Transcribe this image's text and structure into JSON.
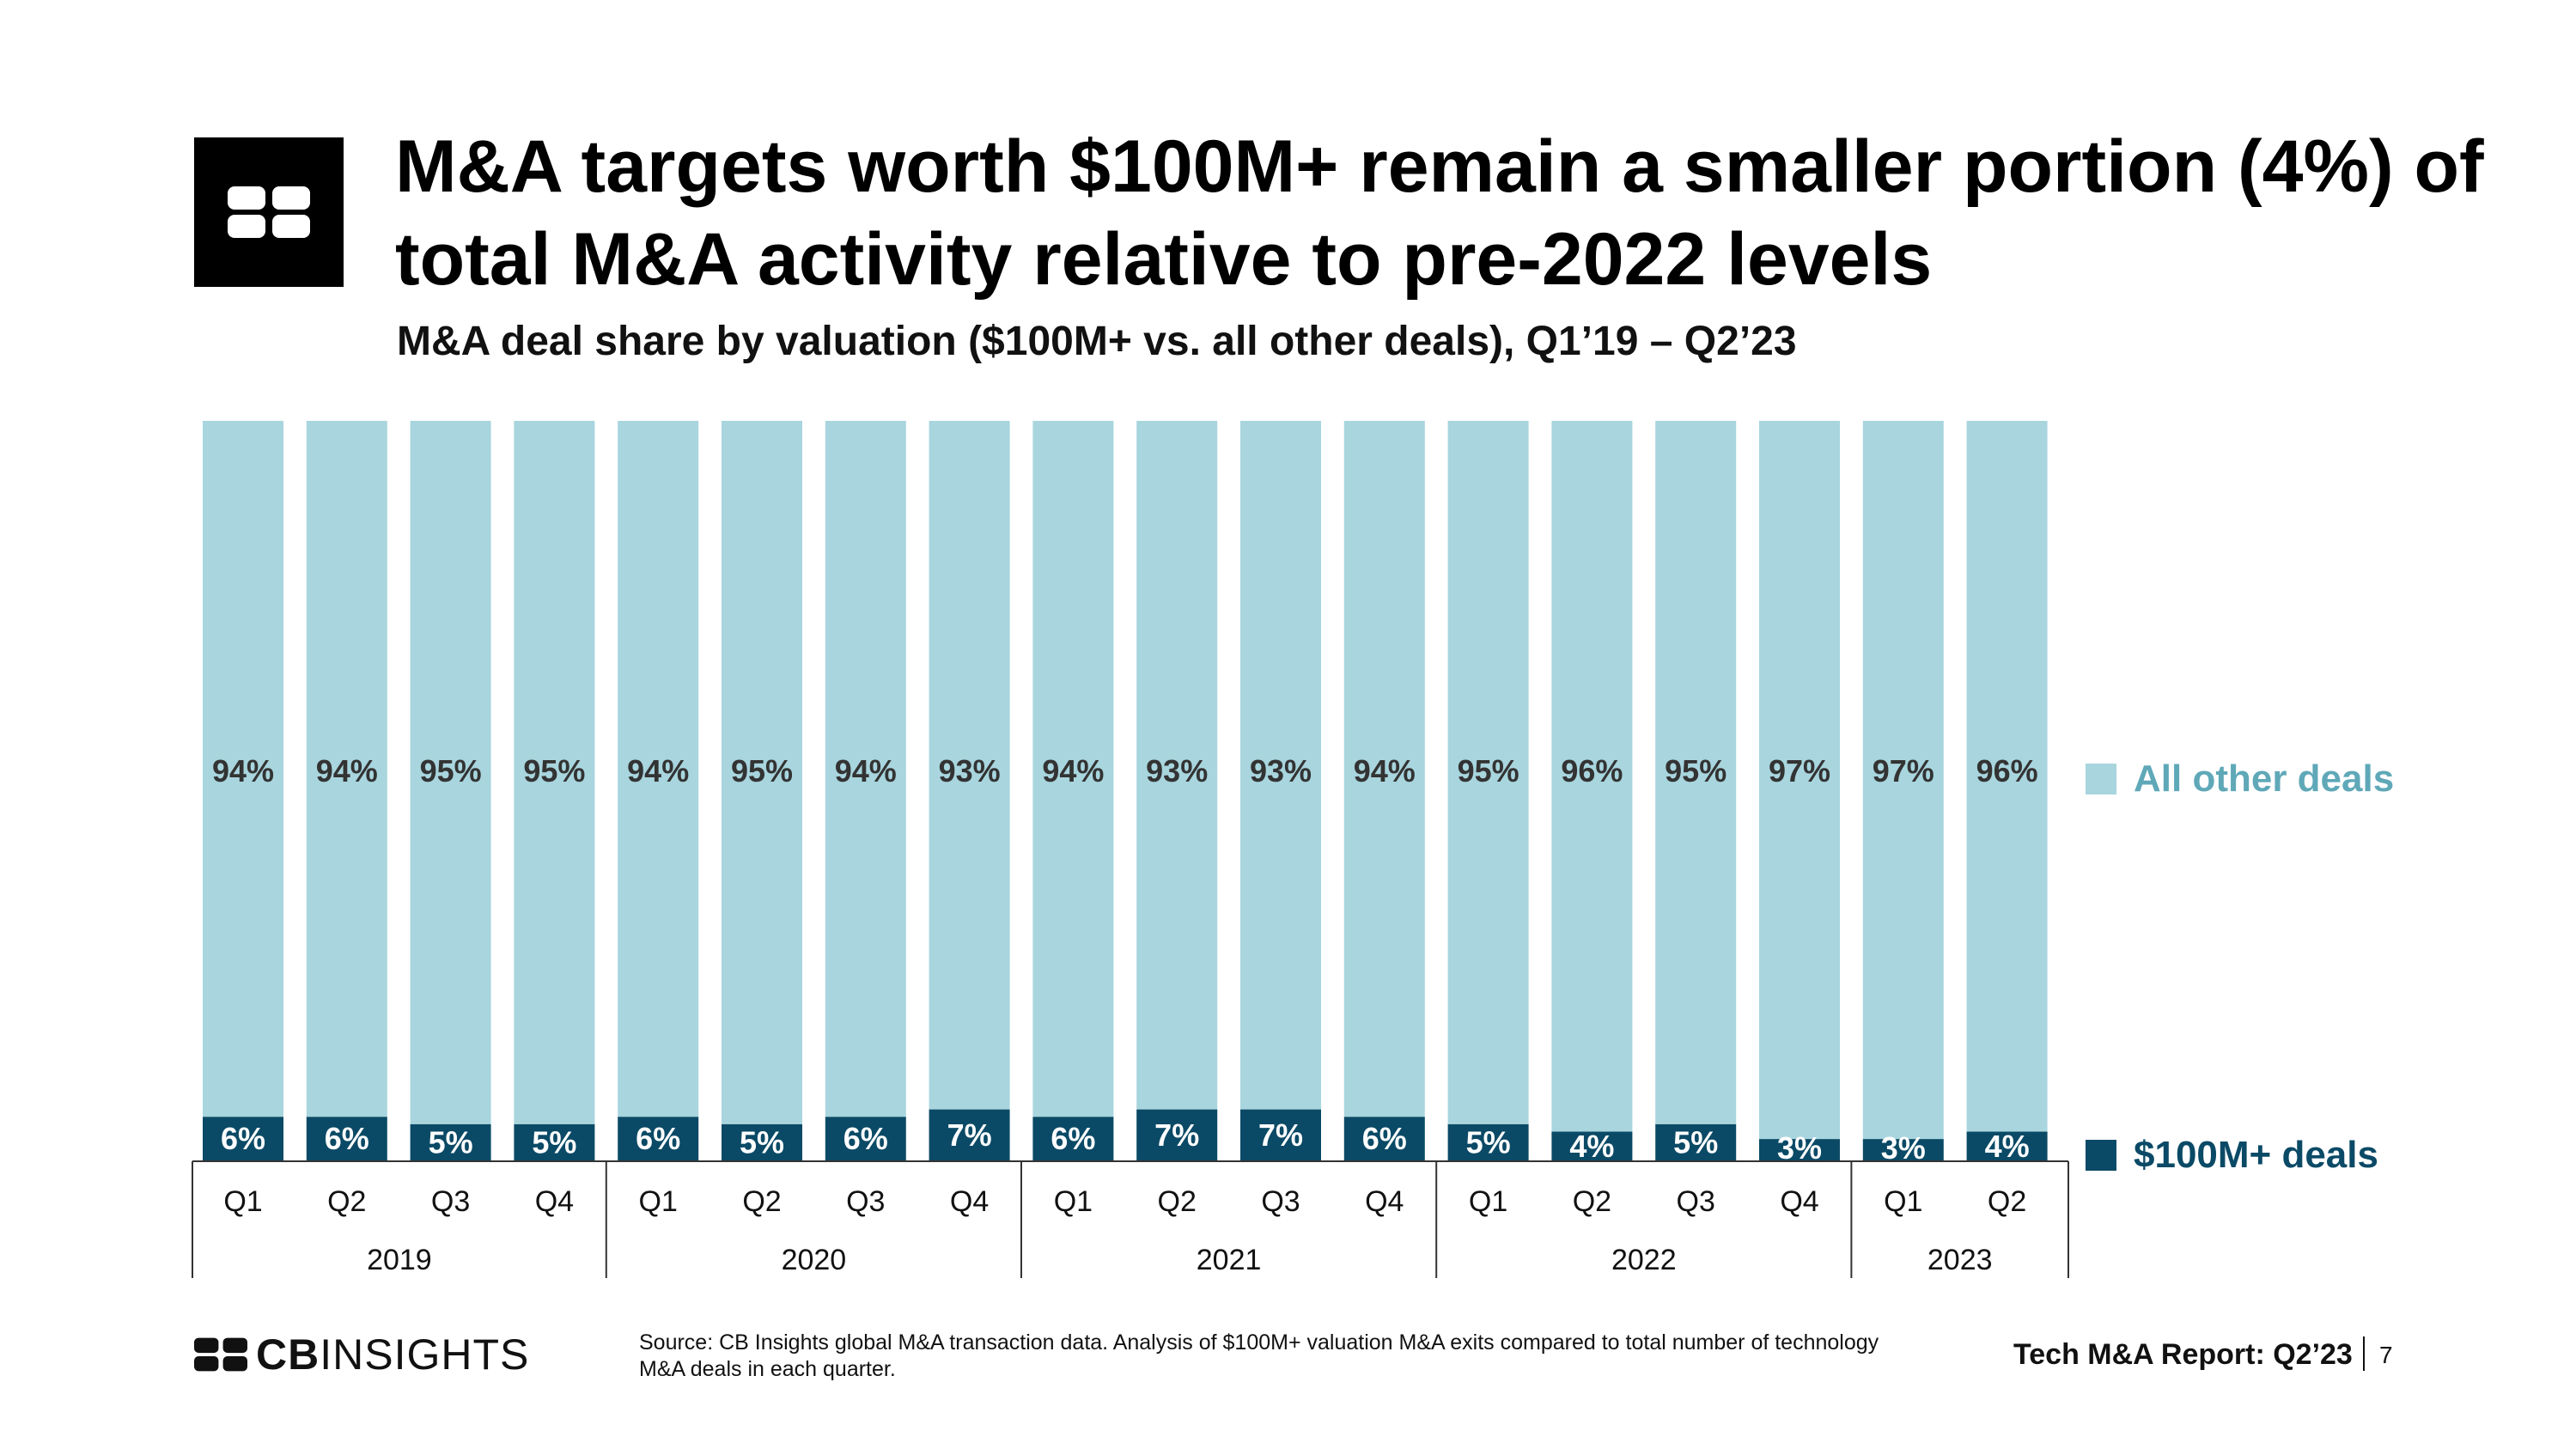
{
  "header": {
    "title": "M&A targets worth $100M+ remain a smaller portion (4%) of total M&A activity relative to pre-2022 levels",
    "subtitle": "M&A deal share by valuation ($100M+ vs. all other deals), Q1’19 – Q2’23"
  },
  "colors": {
    "other": "#a8d5de",
    "large": "#0b4a66",
    "other_label_text": "#333333",
    "large_label_text": "#ffffff",
    "legend_other_text": "#5fa8b8",
    "legend_large_text": "#0b4a66"
  },
  "chart_data": {
    "type": "bar",
    "stacked": true,
    "categories": [
      "Q1",
      "Q2",
      "Q3",
      "Q4",
      "Q1",
      "Q2",
      "Q3",
      "Q4",
      "Q1",
      "Q2",
      "Q3",
      "Q4",
      "Q1",
      "Q2",
      "Q3",
      "Q4",
      "Q1",
      "Q2"
    ],
    "groups": [
      {
        "label": "2019",
        "count": 4
      },
      {
        "label": "2020",
        "count": 4
      },
      {
        "label": "2021",
        "count": 4
      },
      {
        "label": "2022",
        "count": 4
      },
      {
        "label": "2023",
        "count": 2
      }
    ],
    "series": [
      {
        "name": "$100M+ deals",
        "values": [
          6,
          6,
          5,
          5,
          6,
          5,
          6,
          7,
          6,
          7,
          7,
          6,
          5,
          4,
          5,
          3,
          3,
          4
        ]
      },
      {
        "name": "All other deals",
        "values": [
          94,
          94,
          95,
          95,
          94,
          95,
          94,
          93,
          94,
          93,
          93,
          94,
          95,
          96,
          95,
          97,
          97,
          96
        ]
      }
    ],
    "value_suffix": "%",
    "ylim": [
      0,
      100
    ],
    "legend_position": "right"
  },
  "footer": {
    "brand_bold": "CB",
    "brand_light": "INSIGHTS",
    "source": "Source: CB Insights global M&A transaction data. Analysis of $100M+ valuation M&A exits compared to total number of technology M&A deals in each quarter.",
    "report": "Tech M&A Report: Q2’23",
    "page": "7"
  }
}
